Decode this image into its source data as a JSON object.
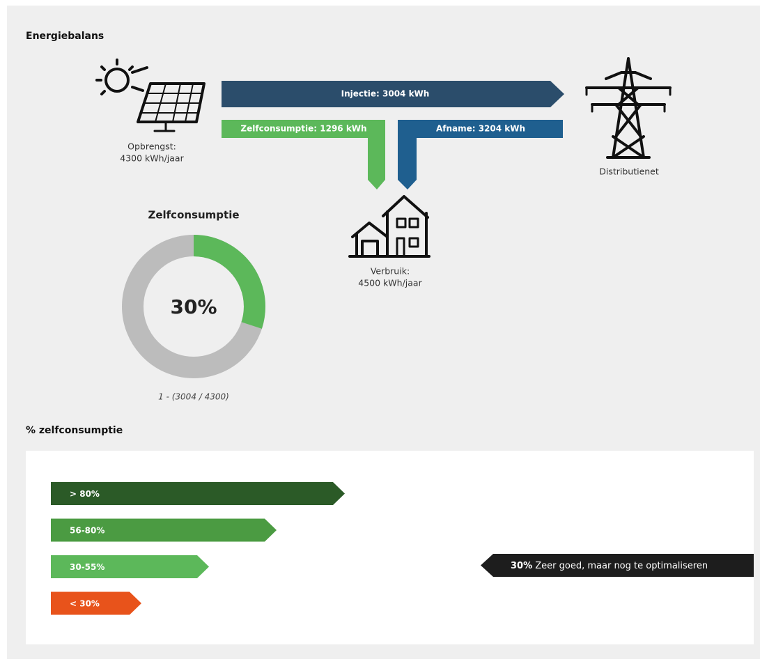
{
  "title": "Energiebalans",
  "solar": {
    "label": "Opbrengst:",
    "value": "4300 kWh/jaar"
  },
  "flows": {
    "injectie": "Injectie: 3004 kWh",
    "zelfconsumptie": "Zelfconsumptie: 1296 kWh",
    "afname": "Afname: 3204 kWh"
  },
  "grid": {
    "label": "Distributienet"
  },
  "house": {
    "label": "Verbruik:",
    "value": "4500 kWh/jaar"
  },
  "donut": {
    "title": "Zelfconsumptie",
    "value": 30,
    "label": "30%",
    "formula": "1 - (3004 / 4300)"
  },
  "scale": {
    "title": "% zelfconsumptie",
    "levels": [
      {
        "label": "> 80%",
        "color": "#2b5a27"
      },
      {
        "label": "56-80%",
        "color": "#4b9b42"
      },
      {
        "label": "30-55%",
        "color": "#5cb85a"
      },
      {
        "label": "< 30%",
        "color": "#e8531b"
      }
    ],
    "indicator": {
      "value": "30%",
      "text": "Zeer goed, maar nog te optimaliseren"
    }
  }
}
